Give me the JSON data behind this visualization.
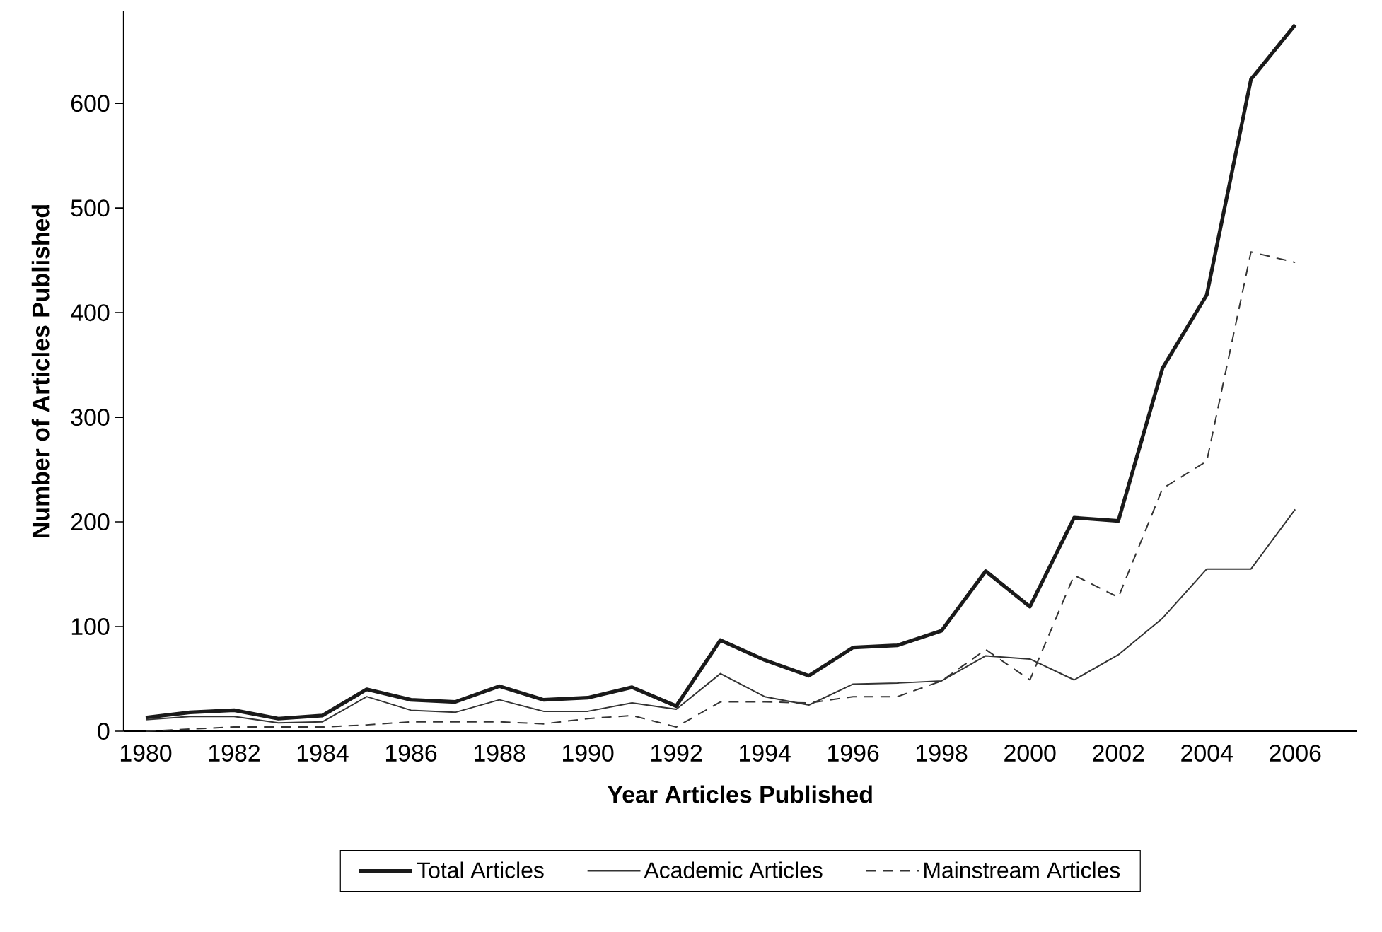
{
  "chart_data": {
    "type": "line",
    "xlabel": "Year Articles Published",
    "ylabel": "Number of Articles Published",
    "categories": [
      "1980",
      null,
      "1982",
      null,
      "1984",
      null,
      "1986",
      null,
      "1988",
      null,
      "1990",
      null,
      "1992",
      null,
      "1994",
      null,
      "1996",
      null,
      "1998",
      null,
      "2000",
      null,
      "2002",
      null,
      "2004",
      null,
      "2006"
    ],
    "ylim": [
      0,
      688
    ],
    "yticks": [
      0,
      100,
      200,
      300,
      400,
      500,
      600
    ],
    "legend": "bottom",
    "marker": "none",
    "series": [
      {
        "name": "Total Articles",
        "color": "#1a1a1a",
        "line_style": "solid",
        "values": [
          13,
          18,
          20,
          12,
          15,
          40,
          30,
          28,
          43,
          30,
          32,
          42,
          24,
          87,
          68,
          53,
          80,
          82,
          96,
          153,
          119,
          204,
          201,
          347,
          417,
          623,
          675
        ]
      },
      {
        "name": "Academic Articles",
        "color": "#333333",
        "line_style": "solid",
        "values": [
          11,
          14,
          14,
          8,
          9,
          33,
          20,
          18,
          30,
          19,
          19,
          27,
          21,
          55,
          33,
          25,
          45,
          46,
          48,
          72,
          69,
          49,
          73,
          108,
          155,
          155,
          212
        ]
      },
      {
        "name": "Mainstream Articles",
        "color": "#333333",
        "line_style": "dashed",
        "values": [
          0,
          2,
          4,
          4,
          4,
          6,
          9,
          9,
          9,
          7,
          12,
          15,
          4,
          28,
          28,
          27,
          33,
          33,
          48,
          78,
          49,
          149,
          128,
          232,
          258,
          458,
          448
        ]
      }
    ]
  }
}
